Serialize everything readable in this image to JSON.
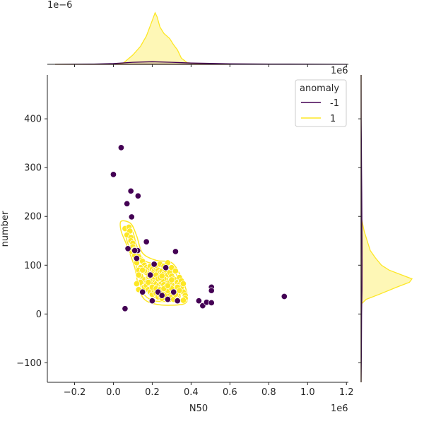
{
  "chart_data": {
    "type": "scatter",
    "subtype": "jointplot-with-kde",
    "title": "",
    "xlabel": "N50",
    "ylabel": "number",
    "x_scale_label": "1e6",
    "y_scale_label": "",
    "top_marginal_scale_label": "1e−6",
    "right_marginal_scale_label": "1e6",
    "xlim": [
      -0.34,
      1.21
    ],
    "ylim": [
      -140,
      490
    ],
    "xticks": [
      -0.2,
      0.0,
      0.2,
      0.4,
      0.6,
      0.8,
      1.0,
      1.2
    ],
    "xtick_labels": [
      "−0.2",
      "0.0",
      "0.2",
      "0.4",
      "0.6",
      "0.8",
      "1.0",
      "1.2"
    ],
    "yticks": [
      -100,
      0,
      100,
      200,
      300,
      400
    ],
    "ytick_labels": [
      "−100",
      "0",
      "100",
      "200",
      "300",
      "400"
    ],
    "grid": false,
    "legend": {
      "title": "anomaly",
      "placement": "top-right",
      "entries": [
        {
          "label": "-1",
          "color": "#440154"
        },
        {
          "label": "1",
          "color": "#fde725"
        }
      ]
    },
    "series": [
      {
        "name": "-1",
        "color": "#440154",
        "points": [
          [
            0.04,
            341
          ],
          [
            0.0,
            286
          ],
          [
            0.09,
            252
          ],
          [
            0.127,
            242
          ],
          [
            0.07,
            226
          ],
          [
            0.094,
            199
          ],
          [
            0.17,
            148
          ],
          [
            0.075,
            134
          ],
          [
            0.125,
            130
          ],
          [
            0.32,
            128
          ],
          [
            0.11,
            130
          ],
          [
            0.12,
            114
          ],
          [
            0.21,
            102
          ],
          [
            0.27,
            95
          ],
          [
            0.19,
            80
          ],
          [
            0.06,
            11
          ],
          [
            0.2,
            27
          ],
          [
            0.28,
            30
          ],
          [
            0.33,
            27
          ],
          [
            0.44,
            27
          ],
          [
            0.46,
            17
          ],
          [
            0.48,
            24
          ],
          [
            0.505,
            23
          ],
          [
            0.505,
            55
          ],
          [
            0.505,
            48
          ],
          [
            0.88,
            36
          ],
          [
            0.23,
            45
          ],
          [
            0.31,
            45
          ],
          [
            0.15,
            45
          ],
          [
            0.25,
            38
          ]
        ]
      },
      {
        "name": "1",
        "color": "#fde725",
        "points": [
          [
            0.06,
            175
          ],
          [
            0.08,
            178
          ],
          [
            0.085,
            170
          ],
          [
            0.07,
            162
          ],
          [
            0.09,
            157
          ],
          [
            0.09,
            150
          ],
          [
            0.1,
            145
          ],
          [
            0.1,
            138
          ],
          [
            0.11,
            132
          ],
          [
            0.12,
            125
          ],
          [
            0.095,
            128
          ],
          [
            0.11,
            120
          ],
          [
            0.13,
            118
          ],
          [
            0.14,
            110
          ],
          [
            0.12,
            105
          ],
          [
            0.15,
            108
          ],
          [
            0.16,
            100
          ],
          [
            0.14,
            95
          ],
          [
            0.13,
            90
          ],
          [
            0.17,
            95
          ],
          [
            0.18,
            92
          ],
          [
            0.19,
            98
          ],
          [
            0.2,
            92
          ],
          [
            0.21,
            88
          ],
          [
            0.22,
            95
          ],
          [
            0.23,
            90
          ],
          [
            0.24,
            85
          ],
          [
            0.25,
            88
          ],
          [
            0.26,
            82
          ],
          [
            0.27,
            90
          ],
          [
            0.28,
            80
          ],
          [
            0.29,
            85
          ],
          [
            0.3,
            78
          ],
          [
            0.31,
            72
          ],
          [
            0.32,
            70
          ],
          [
            0.33,
            65
          ],
          [
            0.34,
            60
          ],
          [
            0.35,
            55
          ],
          [
            0.36,
            45
          ],
          [
            0.37,
            38
          ],
          [
            0.37,
            32
          ],
          [
            0.36,
            28
          ],
          [
            0.33,
            40
          ],
          [
            0.31,
            50
          ],
          [
            0.3,
            60
          ],
          [
            0.28,
            62
          ],
          [
            0.27,
            70
          ],
          [
            0.26,
            72
          ],
          [
            0.25,
            68
          ],
          [
            0.24,
            60
          ],
          [
            0.23,
            55
          ],
          [
            0.22,
            60
          ],
          [
            0.21,
            65
          ],
          [
            0.2,
            70
          ],
          [
            0.19,
            72
          ],
          [
            0.18,
            75
          ],
          [
            0.17,
            70
          ],
          [
            0.16,
            68
          ],
          [
            0.15,
            72
          ],
          [
            0.14,
            78
          ],
          [
            0.13,
            80
          ],
          [
            0.15,
            60
          ],
          [
            0.16,
            55
          ],
          [
            0.17,
            58
          ],
          [
            0.18,
            50
          ],
          [
            0.19,
            45
          ],
          [
            0.2,
            40
          ],
          [
            0.21,
            48
          ],
          [
            0.22,
            42
          ],
          [
            0.23,
            35
          ],
          [
            0.24,
            40
          ],
          [
            0.25,
            32
          ],
          [
            0.26,
            45
          ],
          [
            0.27,
            38
          ],
          [
            0.28,
            50
          ],
          [
            0.29,
            42
          ],
          [
            0.3,
            35
          ],
          [
            0.31,
            30
          ],
          [
            0.32,
            40
          ],
          [
            0.33,
            55
          ],
          [
            0.34,
            48
          ],
          [
            0.2,
            82
          ],
          [
            0.21,
            76
          ],
          [
            0.22,
            80
          ],
          [
            0.23,
            72
          ],
          [
            0.24,
            75
          ],
          [
            0.25,
            78
          ],
          [
            0.26,
            60
          ],
          [
            0.27,
            55
          ],
          [
            0.28,
            48
          ],
          [
            0.29,
            65
          ],
          [
            0.3,
            52
          ],
          [
            0.19,
            62
          ],
          [
            0.18,
            65
          ],
          [
            0.17,
            85
          ],
          [
            0.16,
            88
          ],
          [
            0.15,
            90
          ],
          [
            0.14,
            65
          ],
          [
            0.13,
            50
          ],
          [
            0.12,
            62
          ],
          [
            0.22,
            100
          ],
          [
            0.24,
            102
          ],
          [
            0.26,
            98
          ],
          [
            0.28,
            105
          ],
          [
            0.3,
            95
          ],
          [
            0.32,
            88
          ],
          [
            0.34,
            75
          ],
          [
            0.35,
            68
          ],
          [
            0.36,
            62
          ],
          [
            0.2,
            55
          ],
          [
            0.22,
            52
          ],
          [
            0.24,
            50
          ],
          [
            0.26,
            52
          ],
          [
            0.28,
            58
          ],
          [
            0.3,
            70
          ]
        ]
      }
    ],
    "kde_contours": {
      "series": "1",
      "color": "#fde725"
    },
    "marginal_x": {
      "series": [
        {
          "name": "1",
          "color": "#fde725",
          "fill": "#fde72555",
          "curve": [
            [
              -0.3,
              0
            ],
            [
              0.0,
              0.0
            ],
            [
              0.05,
              0.02
            ],
            [
              0.1,
              0.18
            ],
            [
              0.14,
              0.35
            ],
            [
              0.17,
              0.55
            ],
            [
              0.19,
              0.75
            ],
            [
              0.205,
              0.9
            ],
            [
              0.215,
              1.0
            ],
            [
              0.225,
              0.92
            ],
            [
              0.24,
              0.72
            ],
            [
              0.26,
              0.6
            ],
            [
              0.29,
              0.5
            ],
            [
              0.31,
              0.38
            ],
            [
              0.33,
              0.28
            ],
            [
              0.35,
              0.12
            ],
            [
              0.38,
              0.03
            ],
            [
              0.45,
              0.01
            ],
            [
              0.6,
              0.0
            ]
          ]
        },
        {
          "name": "-1",
          "color": "#440154",
          "fill": "#44015422",
          "curve": [
            [
              -0.3,
              0
            ],
            [
              -0.1,
              0.005
            ],
            [
              0.0,
              0.015
            ],
            [
              0.1,
              0.04
            ],
            [
              0.2,
              0.05
            ],
            [
              0.3,
              0.04
            ],
            [
              0.4,
              0.025
            ],
            [
              0.5,
              0.018
            ],
            [
              0.6,
              0.01
            ],
            [
              0.8,
              0.006
            ],
            [
              0.9,
              0.005
            ],
            [
              1.1,
              0.002
            ],
            [
              1.2,
              0.0
            ]
          ]
        }
      ]
    },
    "marginal_y": {
      "series": [
        {
          "name": "1",
          "color": "#fde725",
          "fill": "#fde72555",
          "curve": [
            [
              -140,
              0
            ],
            [
              20,
              0.0
            ],
            [
              30,
              0.1
            ],
            [
              40,
              0.35
            ],
            [
              55,
              0.7
            ],
            [
              65,
              0.95
            ],
            [
              72,
              1.0
            ],
            [
              80,
              0.8
            ],
            [
              90,
              0.55
            ],
            [
              100,
              0.4
            ],
            [
              115,
              0.28
            ],
            [
              130,
              0.18
            ],
            [
              150,
              0.12
            ],
            [
              170,
              0.06
            ],
            [
              185,
              0.03
            ],
            [
              200,
              0.0
            ],
            [
              490,
              0
            ]
          ]
        },
        {
          "name": "-1",
          "color": "#440154",
          "fill": "#44015422",
          "curve": [
            [
              -140,
              0
            ],
            [
              -80,
              0.005
            ],
            [
              0,
              0.01
            ],
            [
              50,
              0.018
            ],
            [
              100,
              0.02
            ],
            [
              150,
              0.018
            ],
            [
              200,
              0.015
            ],
            [
              250,
              0.012
            ],
            [
              300,
              0.008
            ],
            [
              350,
              0.005
            ],
            [
              400,
              0.002
            ],
            [
              490,
              0
            ]
          ]
        }
      ]
    }
  }
}
